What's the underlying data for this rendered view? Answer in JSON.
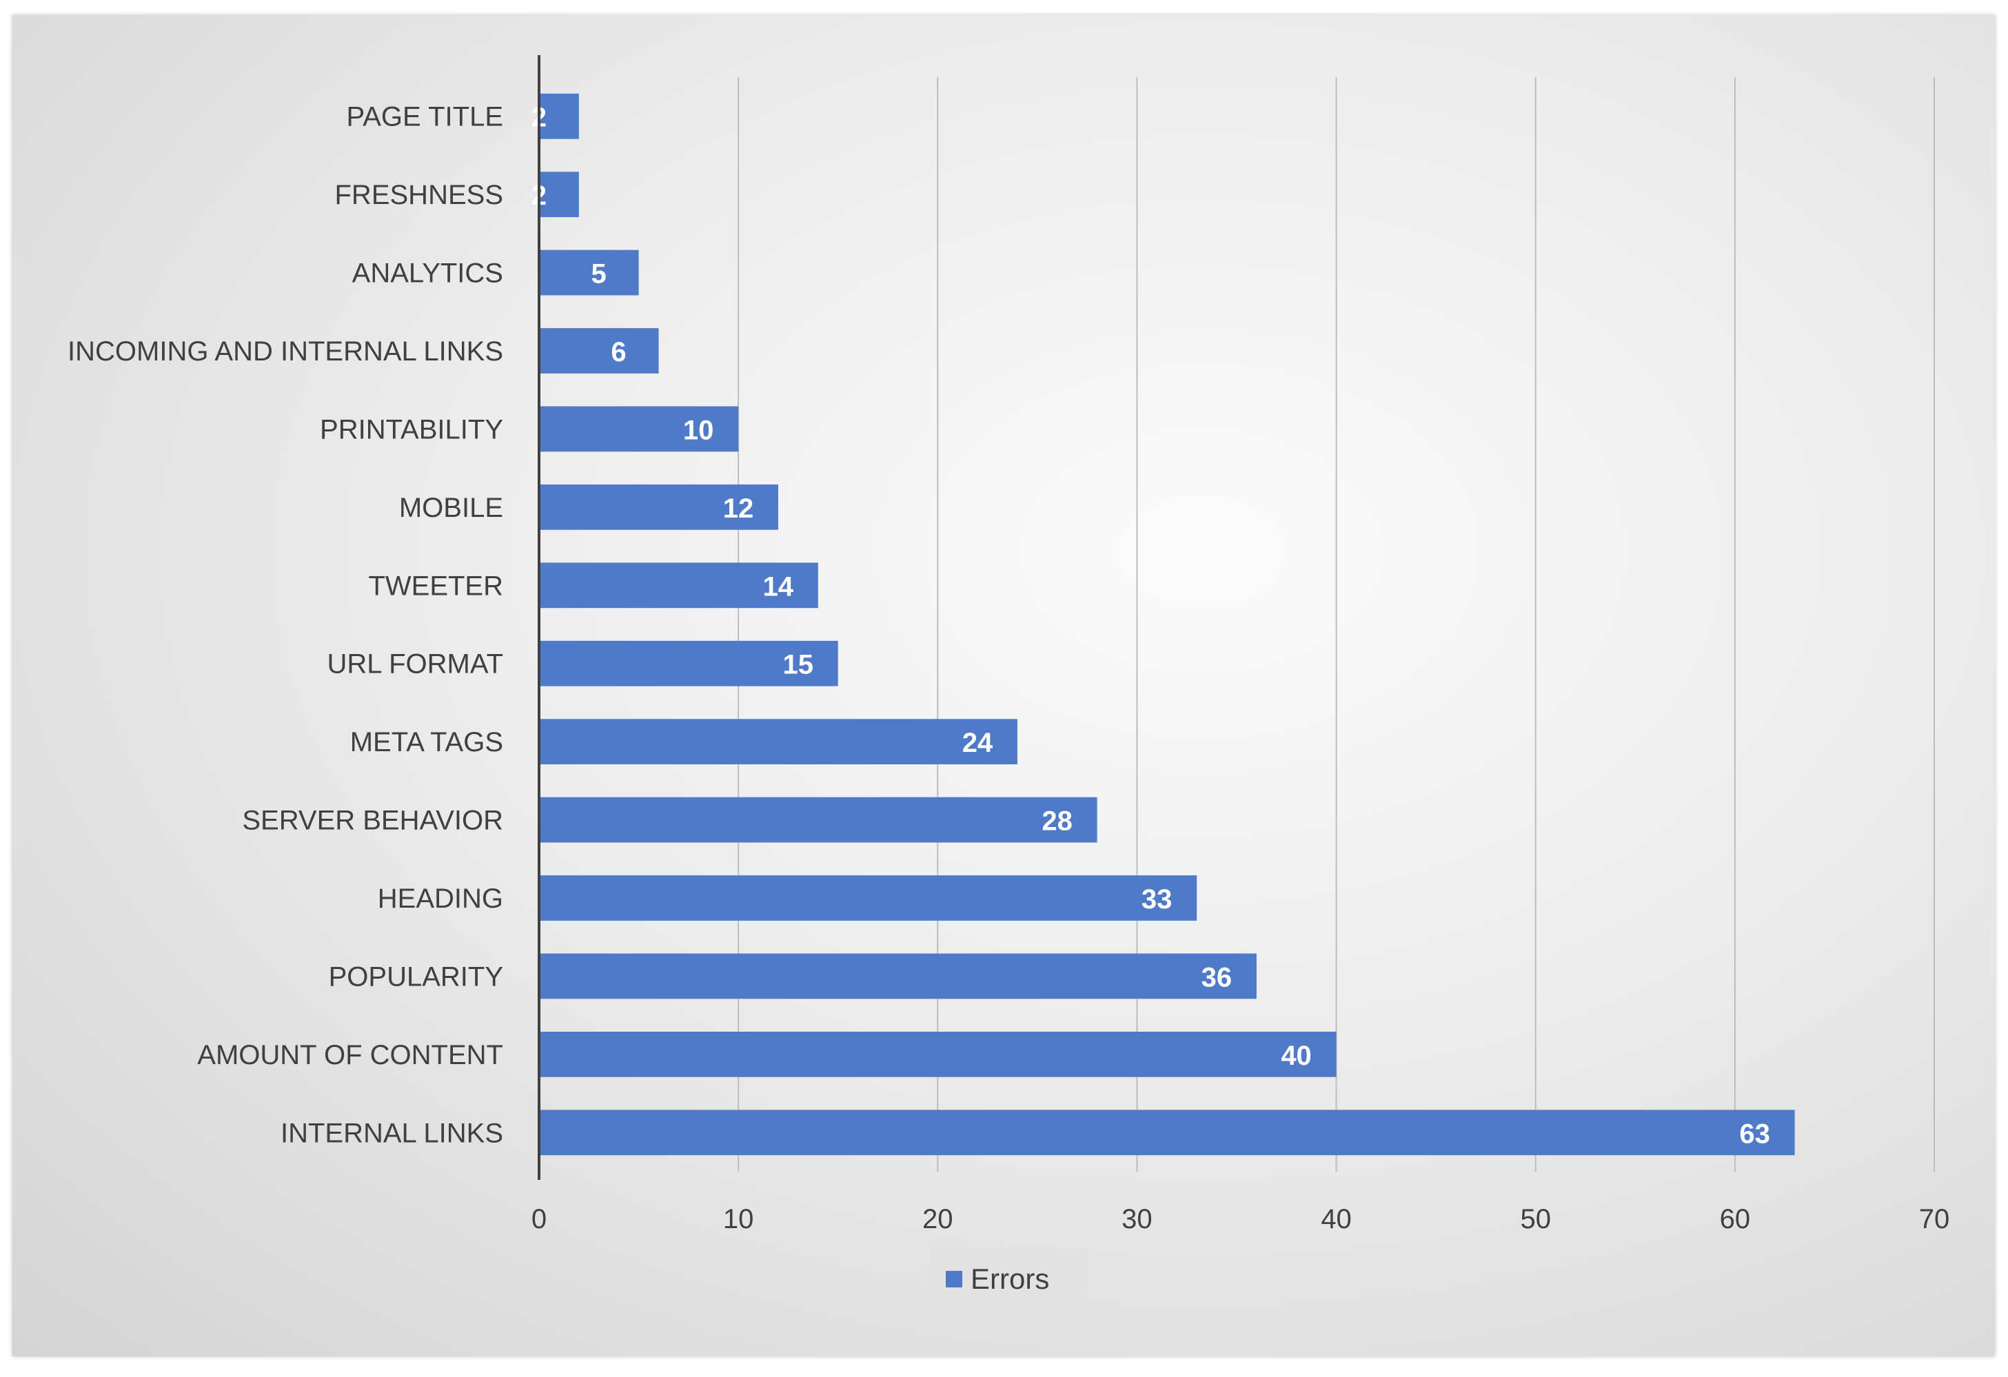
{
  "chart_data": {
    "type": "bar",
    "orientation": "horizontal",
    "categories": [
      "PAGE TITLE",
      "FRESHNESS",
      "ANALYTICS",
      "INCOMING AND INTERNAL LINKS",
      "PRINTABILITY",
      "MOBILE",
      "TWEETER",
      "URL FORMAT",
      "META TAGS",
      "SERVER BEHAVIOR",
      "HEADING",
      "POPULARITY",
      "AMOUNT OF CONTENT",
      "INTERNAL LINKS"
    ],
    "series": [
      {
        "name": "Errors",
        "color": "#4f7ac7",
        "values": [
          2,
          2,
          5,
          6,
          10,
          12,
          14,
          15,
          24,
          28,
          33,
          36,
          40,
          63
        ]
      }
    ],
    "xlim": [
      0,
      70
    ],
    "xticks": [
      "0",
      "10",
      "20",
      "30",
      "40",
      "50",
      "60",
      "70"
    ],
    "grid": "vertical",
    "data_labels": true,
    "legend": "bottom-center"
  }
}
